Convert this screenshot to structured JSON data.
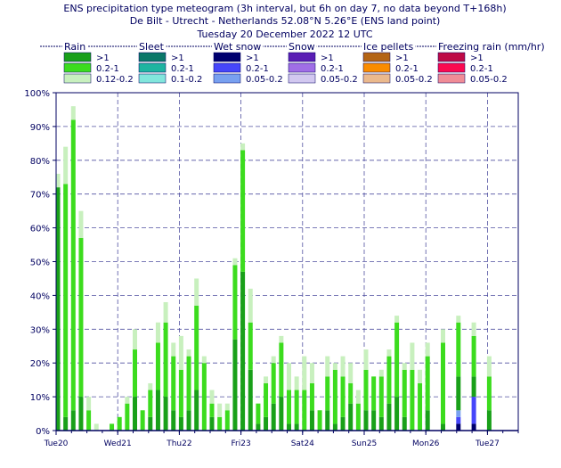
{
  "chart_data": {
    "type": "bar",
    "title_lines": [
      "ENS precipitation type meteogram (3h interval, but 6h on day 7, no data beyond T+168h)",
      "De Bilt - Utrecht - Netherlands 52.08°N 5.26°E (ENS land point)",
      "Tuesday 20 December 2022 12 UTC"
    ],
    "legend": {
      "groups": [
        {
          "name": "Rain",
          "levels": [
            ">1",
            "0.2-1",
            "0.12-0.2"
          ],
          "colors": [
            "#19a019",
            "#3cdc1e",
            "#c8f0be"
          ]
        },
        {
          "name": "Sleet",
          "levels": [
            ">1",
            "0.2-1",
            "0.1-0.2"
          ],
          "colors": [
            "#0a7868",
            "#1eb4a0",
            "#82e6dc"
          ]
        },
        {
          "name": "Wet snow",
          "levels": [
            ">1",
            "0.2-1",
            "0.05-0.2"
          ],
          "colors": [
            "#00006e",
            "#4646fa",
            "#78a0f0"
          ]
        },
        {
          "name": "Snow",
          "levels": [
            ">1",
            "0.2-1",
            "0.05-0.2"
          ],
          "colors": [
            "#5a1eb4",
            "#a06ee6",
            "#d2c8f0"
          ]
        },
        {
          "name": "Ice pellets",
          "levels": [
            ">1",
            "0.2-1",
            "0.05-0.2"
          ],
          "colors": [
            "#b46414",
            "#fa8c00",
            "#ebb98c"
          ]
        },
        {
          "name": "Freezing rain (mm/hr)",
          "levels": [
            ">1",
            "0.2-1",
            "0.05-0.2"
          ],
          "colors": [
            "#be0a46",
            "#fa0a50",
            "#f08c96"
          ]
        }
      ]
    },
    "y_axis": {
      "min": 0,
      "max": 100,
      "step": 10,
      "unit": "%",
      "ticks": [
        "0%",
        "10%",
        "20%",
        "30%",
        "40%",
        "50%",
        "60%",
        "70%",
        "80%",
        "90%",
        "100%"
      ]
    },
    "x_axis": {
      "labels": [
        {
          "text": "Tue20",
          "hours": 0,
          "color": "#000060"
        },
        {
          "text": "Wed21",
          "hours": 24,
          "color": "#000060"
        },
        {
          "text": "Thu22",
          "hours": 48,
          "color": "#000060"
        },
        {
          "text": "Fri23",
          "hours": 72,
          "color": "#000060"
        },
        {
          "text": "Sat24",
          "hours": 96,
          "color": "#000060"
        },
        {
          "text": "Sun25",
          "hours": 120,
          "color": "#e00000"
        },
        {
          "text": "Mon26",
          "hours": 144,
          "color": "#000060"
        },
        {
          "text": "Tue27",
          "hours": 168,
          "color": "#000060"
        }
      ],
      "range_hours": [
        0,
        180
      ]
    },
    "grid": true,
    "bars": [
      {
        "t": 0,
        "rain": [
          72,
          0,
          4
        ]
      },
      {
        "t": 3,
        "rain": [
          4,
          69,
          11
        ]
      },
      {
        "t": 6,
        "rain": [
          6,
          86,
          4
        ]
      },
      {
        "t": 9,
        "rain": [
          10,
          47,
          8
        ]
      },
      {
        "t": 12,
        "rain": [
          0,
          6,
          4
        ]
      },
      {
        "t": 15,
        "rain": [
          0,
          0,
          2
        ]
      },
      {
        "t": 21,
        "rain": [
          0,
          2,
          0
        ]
      },
      {
        "t": 24,
        "rain": [
          0,
          4,
          0
        ]
      },
      {
        "t": 27,
        "rain": [
          0,
          8,
          2
        ]
      },
      {
        "t": 30,
        "rain": [
          10,
          14,
          6
        ]
      },
      {
        "t": 33,
        "rain": [
          0,
          6,
          0
        ]
      },
      {
        "t": 36,
        "rain": [
          4,
          8,
          2
        ]
      },
      {
        "t": 39,
        "rain": [
          12,
          14,
          6
        ]
      },
      {
        "t": 42,
        "rain": [
          10,
          22,
          6
        ]
      },
      {
        "t": 45,
        "rain": [
          6,
          16,
          4
        ]
      },
      {
        "t": 48,
        "rain": [
          4,
          14,
          10
        ]
      },
      {
        "t": 51,
        "rain": [
          6,
          16,
          2
        ]
      },
      {
        "t": 54,
        "rain": [
          12,
          25,
          8
        ]
      },
      {
        "t": 57,
        "rain": [
          0,
          20,
          2
        ]
      },
      {
        "t": 60,
        "rain": [
          4,
          4,
          4
        ]
      },
      {
        "t": 63,
        "rain": [
          0,
          4,
          4
        ]
      },
      {
        "t": 66,
        "rain": [
          0,
          6,
          2
        ]
      },
      {
        "t": 69,
        "rain": [
          27,
          22,
          2
        ]
      },
      {
        "t": 72,
        "rain": [
          47,
          36,
          2
        ]
      },
      {
        "t": 75,
        "rain": [
          18,
          14,
          10
        ]
      },
      {
        "t": 78,
        "rain": [
          2,
          6,
          0
        ]
      },
      {
        "t": 81,
        "rain": [
          4,
          10,
          2
        ]
      },
      {
        "t": 84,
        "rain": [
          8,
          12,
          2
        ]
      },
      {
        "t": 87,
        "rain": [
          10,
          16,
          2
        ]
      },
      {
        "t": 90,
        "rain": [
          2,
          10,
          8
        ]
      },
      {
        "t": 93,
        "rain": [
          2,
          10,
          4
        ]
      },
      {
        "t": 96,
        "rain": [
          0,
          12,
          10
        ]
      },
      {
        "t": 99,
        "rain": [
          6,
          8,
          6
        ]
      },
      {
        "t": 102,
        "rain": [
          0,
          6,
          0
        ]
      },
      {
        "t": 105,
        "rain": [
          6,
          10,
          6
        ]
      },
      {
        "t": 108,
        "rain": [
          2,
          16,
          2
        ]
      },
      {
        "t": 111,
        "rain": [
          4,
          12,
          6
        ]
      },
      {
        "t": 114,
        "rain": [
          8,
          6,
          6
        ]
      },
      {
        "t": 117,
        "rain": [
          0,
          8,
          4
        ]
      },
      {
        "t": 120,
        "rain": [
          6,
          12,
          6
        ]
      },
      {
        "t": 123,
        "rain": [
          6,
          10,
          0
        ]
      },
      {
        "t": 126,
        "rain": [
          4,
          12,
          2
        ]
      },
      {
        "t": 129,
        "rain": [
          8,
          14,
          2
        ]
      },
      {
        "t": 132,
        "rain": [
          10,
          22,
          2
        ]
      },
      {
        "t": 135,
        "rain": [
          4,
          14,
          2
        ]
      },
      {
        "t": 138,
        "rain": [
          0,
          18,
          8
        ]
      },
      {
        "t": 141,
        "rain": [
          0,
          14,
          4
        ]
      },
      {
        "t": 144,
        "rain": [
          6,
          16,
          4
        ]
      },
      {
        "t": 150,
        "rain": [
          2,
          24,
          4
        ]
      },
      {
        "t": 156,
        "rain": [
          10,
          16,
          2
        ],
        "wetsnow": [
          2,
          2,
          2
        ]
      },
      {
        "t": 162,
        "rain": [
          6,
          12,
          4
        ],
        "wetsnow": [
          2,
          8,
          0
        ]
      },
      {
        "t": 168,
        "rain": [
          6,
          10,
          6
        ]
      }
    ]
  }
}
